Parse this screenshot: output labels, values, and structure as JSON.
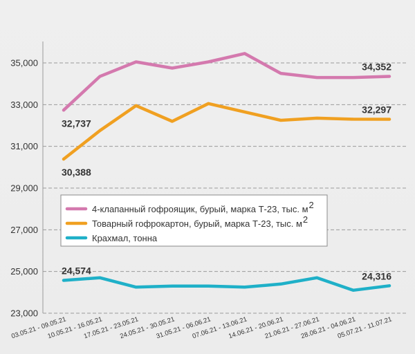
{
  "chart_data": {
    "type": "line",
    "categories": [
      "03.05.21 - 09.05.21",
      "10.05.21 - 16.05.21",
      "17.05.21 - 23.05.21",
      "24.05.21 - 30.05.21",
      "31.05.21 - 06.06.21",
      "07.06.21 - 13.06.21",
      "14.06.21 - 20.06.21",
      "21.06.21 - 27.06.21",
      "28.06.21 - 04.06.21",
      "05.07.21 - 11.07.21"
    ],
    "ylim": [
      23000,
      36000
    ],
    "yticks": [
      "23,000",
      "25,000",
      "27,000",
      "29,000",
      "31,000",
      "33,000",
      "35,000"
    ],
    "ytick_values": [
      23000,
      25000,
      27000,
      29000,
      31000,
      33000,
      35000
    ],
    "grid": "horizontal dashed",
    "legend_position": "center-right",
    "series": [
      {
        "name": "4-клапанный гофроящик, бурый, марка Т-23, тыс. м",
        "name_sup": "2",
        "color": "#d479ae",
        "values": [
          32737,
          34350,
          35050,
          34750,
          35050,
          35450,
          34500,
          34300,
          34300,
          34352
        ]
      },
      {
        "name": "Товарный гофрокартон, бурый, марка Т-23, тыс. м",
        "name_sup": "2",
        "color": "#f0a021",
        "values": [
          30388,
          31750,
          32950,
          32200,
          33050,
          32650,
          32250,
          32350,
          32300,
          32297
        ]
      },
      {
        "name": "Крахмал, тонна",
        "name_sup": "",
        "color": "#1fb0c8",
        "values": [
          24574,
          24700,
          24250,
          24300,
          24300,
          24250,
          24400,
          24700,
          24100,
          24316
        ]
      }
    ],
    "data_labels": [
      {
        "series": 0,
        "index": 0,
        "text": "32,737",
        "pos": "below"
      },
      {
        "series": 0,
        "index": 9,
        "text": "34,352",
        "pos": "above"
      },
      {
        "series": 1,
        "index": 0,
        "text": "30,388",
        "pos": "below"
      },
      {
        "series": 1,
        "index": 9,
        "text": "32,297",
        "pos": "above"
      },
      {
        "series": 2,
        "index": 0,
        "text": "24,574",
        "pos": "above"
      },
      {
        "series": 2,
        "index": 9,
        "text": "24,316",
        "pos": "above"
      }
    ]
  }
}
